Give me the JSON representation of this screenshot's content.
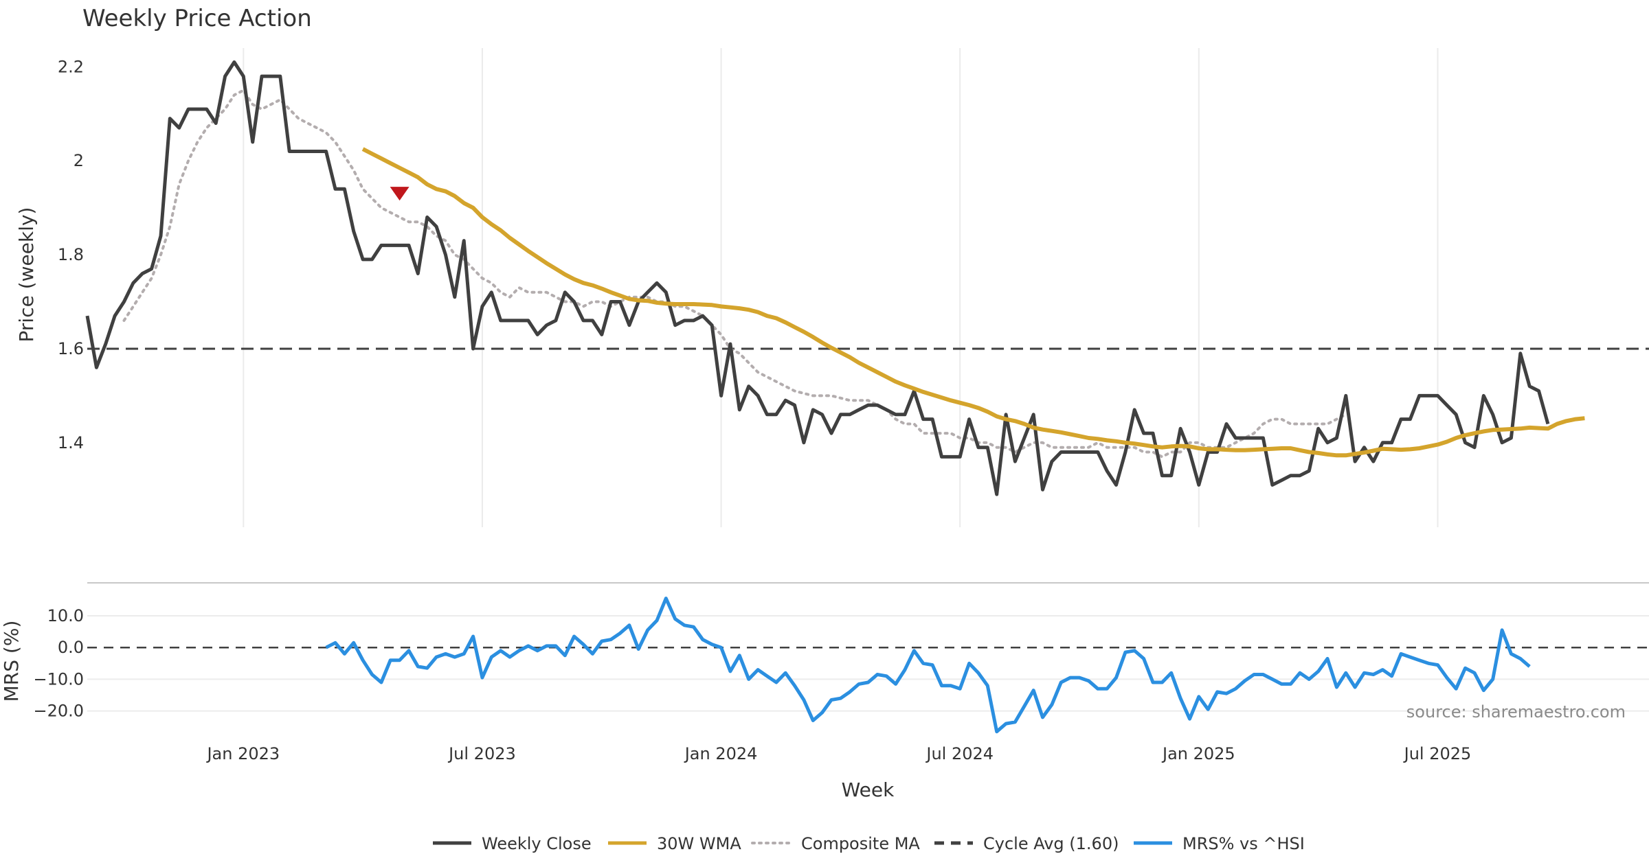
{
  "chart_data": {
    "type": "line",
    "title": "Weekly Price Action",
    "xlabel": "Week",
    "x_ticks": [
      "Jan 2023",
      "Jul 2023",
      "Jan 2024",
      "Jul 2024",
      "Jan 2025",
      "Jul 2025"
    ],
    "x_range_weeks": [
      -17,
      153
    ],
    "price_panel": {
      "ylabel": "Price (weekly)",
      "ylim": [
        1.22,
        2.24
      ],
      "y_ticks": [
        1.4,
        1.6,
        1.8,
        2.0,
        2.2
      ],
      "y_tick_labels": [
        "1.4",
        "1.6",
        "1.8",
        "2",
        "2.2"
      ],
      "grid": "vertical",
      "series": [
        {
          "name": "Weekly Close",
          "color": "#404040",
          "style": "solid",
          "start_week": -17,
          "values": [
            1.67,
            1.56,
            1.61,
            1.67,
            1.7,
            1.74,
            1.76,
            1.77,
            1.84,
            2.09,
            2.07,
            2.11,
            2.11,
            2.11,
            2.08,
            2.18,
            2.21,
            2.18,
            2.04,
            2.18,
            2.18,
            2.18,
            2.02,
            2.02,
            2.02,
            2.02,
            2.02,
            1.94,
            1.94,
            1.85,
            1.79,
            1.79,
            1.82,
            1.82,
            1.82,
            1.82,
            1.76,
            1.88,
            1.86,
            1.8,
            1.71,
            1.83,
            1.6,
            1.69,
            1.72,
            1.66,
            1.66,
            1.66,
            1.66,
            1.63,
            1.65,
            1.66,
            1.72,
            1.7,
            1.66,
            1.66,
            1.63,
            1.7,
            1.7,
            1.65,
            1.7,
            1.72,
            1.74,
            1.72,
            1.65,
            1.66,
            1.66,
            1.67,
            1.65,
            1.5,
            1.61,
            1.47,
            1.52,
            1.5,
            1.46,
            1.46,
            1.49,
            1.48,
            1.4,
            1.47,
            1.46,
            1.42,
            1.46,
            1.46,
            1.47,
            1.48,
            1.48,
            1.47,
            1.46,
            1.46,
            1.51,
            1.45,
            1.45,
            1.37,
            1.37,
            1.37,
            1.45,
            1.39,
            1.39,
            1.29,
            1.46,
            1.36,
            1.41,
            1.46,
            1.3,
            1.36,
            1.38,
            1.38,
            1.38,
            1.38,
            1.38,
            1.34,
            1.31,
            1.38,
            1.47,
            1.42,
            1.42,
            1.33,
            1.33,
            1.43,
            1.38,
            1.31,
            1.38,
            1.38,
            1.44,
            1.41,
            1.41,
            1.41,
            1.41,
            1.31,
            1.32,
            1.33,
            1.33,
            1.34,
            1.43,
            1.4,
            1.41,
            1.5,
            1.36,
            1.39,
            1.36,
            1.4,
            1.4,
            1.45,
            1.45,
            1.5,
            1.5,
            1.5,
            1.48,
            1.46,
            1.4,
            1.39,
            1.5,
            1.46,
            1.4,
            1.41,
            1.59,
            1.52,
            1.51,
            1.44
          ]
        },
        {
          "name": "30W WMA",
          "color": "#d4a42c",
          "style": "solid",
          "start_week": 13,
          "values": [
            2.025,
            2.015,
            2.005,
            1.995,
            1.985,
            1.975,
            1.965,
            1.95,
            1.94,
            1.935,
            1.925,
            1.91,
            1.9,
            1.88,
            1.865,
            1.852,
            1.836,
            1.822,
            1.808,
            1.795,
            1.782,
            1.77,
            1.758,
            1.748,
            1.74,
            1.735,
            1.728,
            1.72,
            1.713,
            1.706,
            1.703,
            1.702,
            1.698,
            1.696,
            1.695,
            1.695,
            1.695,
            1.694,
            1.693,
            1.69,
            1.688,
            1.686,
            1.683,
            1.678,
            1.67,
            1.665,
            1.656,
            1.646,
            1.636,
            1.625,
            1.613,
            1.602,
            1.592,
            1.582,
            1.57,
            1.56,
            1.55,
            1.54,
            1.53,
            1.522,
            1.515,
            1.508,
            1.502,
            1.496,
            1.49,
            1.485,
            1.48,
            1.474,
            1.466,
            1.456,
            1.45,
            1.446,
            1.44,
            1.432,
            1.428,
            1.425,
            1.422,
            1.418,
            1.414,
            1.41,
            1.408,
            1.405,
            1.403,
            1.4,
            1.398,
            1.395,
            1.392,
            1.39,
            1.392,
            1.393,
            1.392,
            1.388,
            1.386,
            1.386,
            1.385,
            1.384,
            1.384,
            1.385,
            1.386,
            1.387,
            1.388,
            1.388,
            1.384,
            1.38,
            1.378,
            1.375,
            1.373,
            1.373,
            1.376,
            1.379,
            1.383,
            1.387,
            1.386,
            1.385,
            1.386,
            1.388,
            1.392,
            1.396,
            1.402,
            1.41,
            1.416,
            1.42,
            1.424,
            1.427,
            1.428,
            1.429,
            1.43,
            1.432,
            1.431,
            1.43,
            1.44,
            1.446,
            1.45,
            1.452
          ]
        },
        {
          "name": "Composite MA",
          "color": "#b3adae",
          "style": "dotted",
          "start_week": -13,
          "values": [
            1.66,
            1.69,
            1.72,
            1.75,
            1.8,
            1.86,
            1.95,
            2.0,
            2.04,
            2.07,
            2.09,
            2.11,
            2.14,
            2.15,
            2.12,
            2.11,
            2.12,
            2.13,
            2.11,
            2.09,
            2.08,
            2.07,
            2.06,
            2.04,
            2.01,
            1.98,
            1.94,
            1.92,
            1.9,
            1.89,
            1.88,
            1.87,
            1.87,
            1.86,
            1.84,
            1.83,
            1.8,
            1.79,
            1.77,
            1.75,
            1.74,
            1.72,
            1.71,
            1.73,
            1.72,
            1.72,
            1.72,
            1.71,
            1.7,
            1.7,
            1.69,
            1.7,
            1.7,
            1.69,
            1.7,
            1.71,
            1.71,
            1.71,
            1.7,
            1.7,
            1.69,
            1.69,
            1.68,
            1.67,
            1.65,
            1.63,
            1.6,
            1.59,
            1.57,
            1.55,
            1.54,
            1.53,
            1.52,
            1.51,
            1.505,
            1.5,
            1.5,
            1.5,
            1.495,
            1.49,
            1.49,
            1.49,
            1.48,
            1.47,
            1.45,
            1.44,
            1.44,
            1.42,
            1.42,
            1.42,
            1.42,
            1.41,
            1.41,
            1.4,
            1.4,
            1.39,
            1.39,
            1.38,
            1.39,
            1.4,
            1.4,
            1.39,
            1.39,
            1.39,
            1.39,
            1.39,
            1.4,
            1.39,
            1.39,
            1.39,
            1.39,
            1.38,
            1.38,
            1.37,
            1.38,
            1.38,
            1.4,
            1.4,
            1.39,
            1.39,
            1.39,
            1.4,
            1.41,
            1.42,
            1.44,
            1.45,
            1.45,
            1.44,
            1.44,
            1.44,
            1.44,
            1.44,
            1.45,
            1.46
          ]
        },
        {
          "name": "Cycle Avg (1.60)",
          "color": "#404040",
          "style": "dashed",
          "value": 1.6
        }
      ],
      "annotations": [
        {
          "type": "marker",
          "shape": "down-triangle",
          "color": "#c0171c",
          "week": 17,
          "value": 1.93
        }
      ]
    },
    "mrs_panel": {
      "ylabel": "MRS (%)",
      "ylim": [
        -27,
        18
      ],
      "y_ticks": [
        10,
        0,
        -10,
        -20
      ],
      "y_tick_labels": [
        "10.0",
        "0.0",
        "−10.0",
        "−20.0"
      ],
      "series": [
        {
          "name": "MRS% vs ^HSI",
          "color": "#2b8fe0",
          "style": "solid",
          "start_week": 9,
          "values": [
            0,
            1.5,
            -2,
            1.5,
            -4,
            -8.5,
            -11,
            -4,
            -4,
            -1,
            -6,
            -6.5,
            -3,
            -2,
            -3,
            -2,
            3.5,
            -9.5,
            -3,
            -1,
            -3,
            -1,
            0.5,
            -1,
            0.5,
            0.5,
            -2.5,
            3.5,
            1,
            -2,
            2,
            2.5,
            4.5,
            7,
            -0.5,
            5.5,
            8.5,
            15.5,
            9,
            7,
            6.5,
            2.5,
            1,
            0,
            -7.5,
            -2.5,
            -10,
            -7,
            -9,
            -11,
            -8,
            -12,
            -16.5,
            -23,
            -20.5,
            -16.5,
            -16,
            -14,
            -11.5,
            -11,
            -8.5,
            -9,
            -11.5,
            -7,
            -1,
            -5,
            -5.5,
            -12,
            -12,
            -13,
            -5,
            -8,
            -12,
            -26.5,
            -24,
            -23.5,
            -18.5,
            -13.5,
            -22,
            -18,
            -11,
            -9.5,
            -9.5,
            -10.5,
            -13,
            -13,
            -9.5,
            -1.5,
            -1,
            -3.5,
            -11,
            -11,
            -8,
            -16,
            -22.5,
            -15.5,
            -19.5,
            -14,
            -14.5,
            -13,
            -10.5,
            -8.5,
            -8.5,
            -10,
            -11.5,
            -11.5,
            -8,
            -10,
            -7.5,
            -3.5,
            -12.5,
            -8,
            -12.5,
            -8,
            -8.5,
            -7,
            -9,
            -2,
            -3,
            -4,
            -5,
            -5.5,
            -9.5,
            -13,
            -6.5,
            -8,
            -13.5,
            -10,
            5.5,
            -2,
            -3.5,
            -6
          ]
        },
        {
          "name": "zero line",
          "color": "#404040",
          "style": "dashed",
          "value": 0
        }
      ]
    },
    "legend": [
      {
        "label": "Weekly Close",
        "color": "#404040",
        "style": "solid"
      },
      {
        "label": "30W WMA",
        "color": "#d4a42c",
        "style": "solid"
      },
      {
        "label": "Composite MA",
        "color": "#b3adae",
        "style": "dotted"
      },
      {
        "label": "Cycle Avg (1.60)",
        "color": "#404040",
        "style": "dashed"
      },
      {
        "label": "MRS% vs ^HSI",
        "color": "#2b8fe0",
        "style": "solid"
      }
    ],
    "legend_position": "bottom-center",
    "source_note": "source: sharemaestro.com"
  }
}
